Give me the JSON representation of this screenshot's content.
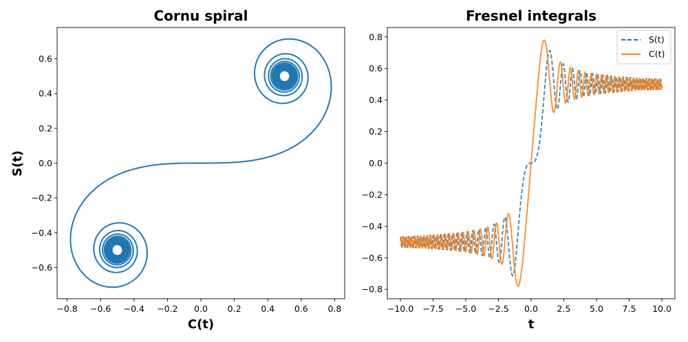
{
  "chart_data": [
    {
      "type": "line",
      "title": "Cornu spiral",
      "xlabel": "C(t)",
      "ylabel": "S(t)",
      "xlim": [
        -0.86,
        0.86
      ],
      "ylim": [
        -0.78,
        0.78
      ],
      "xticks": [
        -0.8,
        -0.6,
        -0.4,
        -0.2,
        0.0,
        0.2,
        0.4,
        0.6,
        0.8
      ],
      "yticks": [
        -0.6,
        -0.4,
        -0.2,
        0.0,
        0.2,
        0.4,
        0.6
      ],
      "xtick_labels": [
        "−0.8",
        "−0.6",
        "−0.4",
        "−0.2",
        "0.0",
        "0.2",
        "0.4",
        "0.6",
        "0.8"
      ],
      "ytick_labels": [
        "−0.6",
        "−0.4",
        "−0.2",
        "0.0",
        "0.2",
        "0.4",
        "0.6"
      ],
      "parameter_range": [
        -10,
        10
      ],
      "grid": false,
      "series": [
        {
          "x_function": "C(t)",
          "y_function": "S(t)",
          "color": "#1f77b4",
          "style": "solid"
        }
      ]
    },
    {
      "type": "line",
      "title": "Fresnel integrals",
      "xlabel": "t",
      "ylabel": "",
      "xlim": [
        -11,
        11
      ],
      "ylim": [
        -0.86,
        0.86
      ],
      "xticks": [
        -10,
        -7.5,
        -5,
        -2.5,
        0,
        2.5,
        5,
        7.5,
        10
      ],
      "yticks": [
        -0.8,
        -0.6,
        -0.4,
        -0.2,
        0.0,
        0.2,
        0.4,
        0.6,
        0.8
      ],
      "xtick_labels": [
        "−10.0",
        "−7.5",
        "−5.0",
        "−2.5",
        "0.0",
        "2.5",
        "5.0",
        "7.5",
        "10.0"
      ],
      "ytick_labels": [
        "−0.8",
        "−0.6",
        "−0.4",
        "−0.2",
        "0.0",
        "0.2",
        "0.4",
        "0.6",
        "0.8"
      ],
      "x_range": [
        -10,
        10
      ],
      "grid": false,
      "legend": "top-right",
      "series": [
        {
          "name": "S(t)",
          "function": "S(t)",
          "color": "#1f77b4",
          "style": "dashed"
        },
        {
          "name": "C(t)",
          "function": "C(t)",
          "color": "#ff7f0e",
          "style": "solid"
        }
      ]
    }
  ]
}
